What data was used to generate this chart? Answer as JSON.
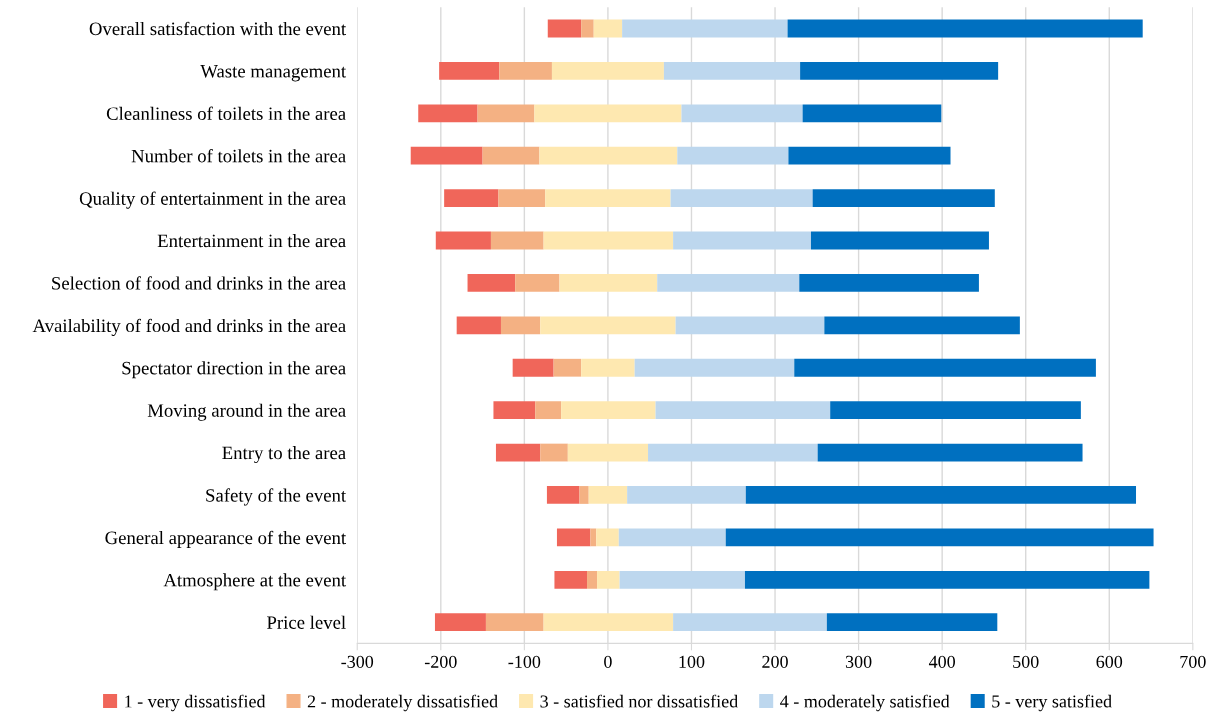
{
  "chart_data": {
    "type": "bar",
    "orientation": "horizontal",
    "categories": [
      "Overall satisfaction with the event",
      "Waste management",
      "Cleanliness of toilets in the area",
      "Number of toilets in the area",
      "Quality of entertainment in the area",
      "Entertainment in the area",
      "Selection of food and drinks in the area",
      "Availability of food and drinks in the area",
      "Spectator direction in the area",
      "Moving around in the area",
      "Entry to the area",
      "Safety of the event",
      "General appearance of the event",
      "Atmosphere at the event",
      "Price level"
    ],
    "series": [
      {
        "name": "1 - very dissatisfied",
        "color": "#f0665a",
        "base": [
          -72,
          -202,
          -227,
          -236,
          -196,
          -206,
          -168,
          -181,
          -114,
          -137,
          -134,
          -73,
          -61,
          -64,
          -207
        ],
        "values": [
          40,
          72,
          71,
          86,
          65,
          66,
          57,
          53,
          49,
          50,
          53,
          39,
          40,
          39,
          61
        ]
      },
      {
        "name": "2 - moderately dissatisfied",
        "color": "#f4b183",
        "base": [
          -32,
          -130,
          -156,
          -150,
          -131,
          -140,
          -111,
          -128,
          -65,
          -87,
          -81,
          -34,
          -21,
          -25,
          -146
        ],
        "values": [
          15,
          63,
          68,
          68,
          56,
          63,
          53,
          47,
          33,
          31,
          33,
          11,
          7,
          12,
          69
        ]
      },
      {
        "name": "3 - satisfied nor dissatisfied",
        "color": "#fee8b0",
        "base": [
          -17,
          -67,
          -88,
          -82,
          -75,
          -77,
          -58,
          -81,
          -32,
          -56,
          -48,
          -23,
          -14,
          -13,
          -77
        ],
        "values": [
          34,
          134,
          176,
          165,
          150,
          155,
          117,
          162,
          64,
          113,
          96,
          46,
          27,
          27,
          155
        ]
      },
      {
        "name": "4 - moderately satisfied",
        "color": "#bdd7ee",
        "base": [
          17,
          67,
          88,
          83,
          75,
          78,
          59,
          81,
          32,
          57,
          48,
          23,
          13,
          14,
          78
        ],
        "values": [
          198,
          163,
          145,
          133,
          170,
          165,
          170,
          178,
          191,
          209,
          203,
          142,
          128,
          150,
          184
        ]
      },
      {
        "name": "5 - very satisfied",
        "color": "#0070c0",
        "base": [
          215,
          230,
          233,
          216,
          245,
          243,
          229,
          259,
          223,
          266,
          251,
          165,
          141,
          164,
          262
        ],
        "values": [
          425,
          237,
          166,
          194,
          218,
          213,
          215,
          234,
          361,
          300,
          317,
          467,
          512,
          484,
          204
        ]
      }
    ],
    "xlim": [
      -300,
      700
    ],
    "xticks": [
      {
        "value": -300,
        "label": "-300"
      },
      {
        "value": -200,
        "label": "-200"
      },
      {
        "value": -100,
        "label": "-100"
      },
      0,
      100,
      200,
      300,
      400,
      500,
      600,
      700
    ],
    "grid": "x",
    "legend": "bottom"
  }
}
